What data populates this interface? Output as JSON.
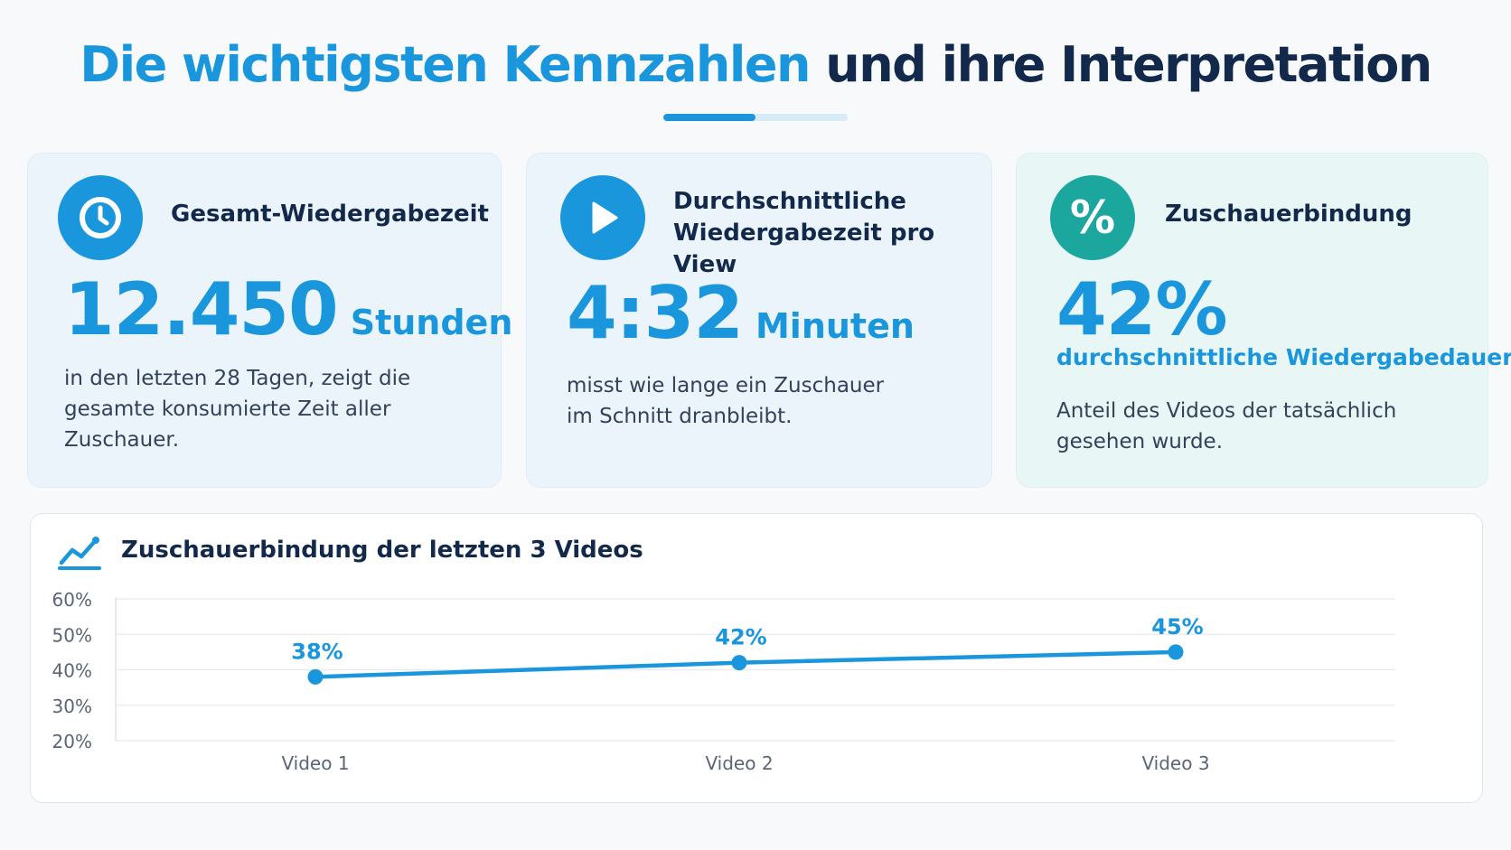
{
  "header": {
    "title_accent": "Die wichtigsten Kennzahlen",
    "title_rest": "und ihre Interpretation"
  },
  "cards": [
    {
      "title": "Gesamt-Wiedergabezeit",
      "value": "12.450",
      "unit": "Stunden",
      "description": "in den letzten 28 Tagen, zeigt die gesamte konsumierte Zeit aller Zuschauer.",
      "icon": "clock-icon"
    },
    {
      "title_line1": "Durchschnittliche",
      "title_line2": "Wiedergabezeit pro View",
      "value": "4:32",
      "unit": "Minuten",
      "description": "misst wie lange ein Zuschauer im Schnitt dranbleibt.",
      "icon": "play-icon"
    },
    {
      "title": "Zuschauerbindung",
      "value": "42%",
      "subunit": "durchschnittliche Wiedergabedauer",
      "description": "Anteil des Videos der tatsächlich gesehen wurde.",
      "icon": "percent-icon",
      "icon_glyph": "%"
    }
  ],
  "colors": {
    "accent": "#1a96dd",
    "teal": "#1ba79d",
    "dark": "#13294b"
  },
  "chart_data": {
    "type": "line",
    "title": "Zuschauerbindung der letzten 3 Videos",
    "categories": [
      "Video 1",
      "Video 2",
      "Video 3"
    ],
    "series": [
      {
        "values": [
          38,
          42,
          45
        ]
      }
    ],
    "data_labels": [
      "38%",
      "42%",
      "45%"
    ],
    "yticks": [
      "60%",
      "50%",
      "40%",
      "30%",
      "20%"
    ],
    "ytick_values": [
      60,
      50,
      40,
      30,
      20
    ],
    "ylim": [
      20,
      60
    ],
    "grid": true,
    "icon": "trend-chart-icon"
  }
}
